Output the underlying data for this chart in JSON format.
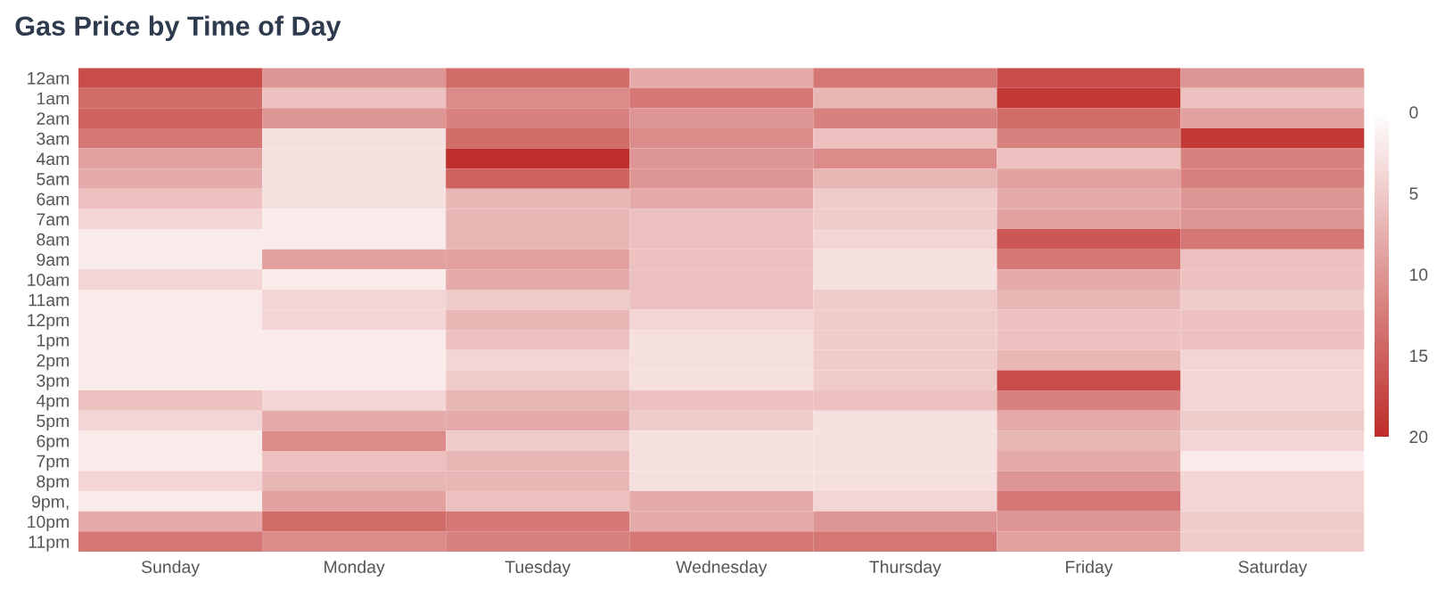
{
  "chart_data": {
    "type": "heatmap",
    "title": "Gas Price by Time of Day",
    "categories": [
      "Sunday",
      "Monday",
      "Tuesday",
      "Wednesday",
      "Thursday",
      "Friday",
      "Saturday"
    ],
    "y_categories": [
      "12am",
      "1am",
      "2am",
      "3am",
      "4am",
      "5am",
      "6am",
      "7am",
      "8am",
      "9am",
      "10am",
      "11am",
      "12pm",
      "1pm",
      "2pm",
      "3pm",
      "4pm",
      "5pm",
      "6pm",
      "7pm",
      "8pm",
      "9pm,",
      "10pm",
      "11pm"
    ],
    "cells": [
      [
        17,
        10,
        14,
        8,
        13,
        17,
        10
      ],
      [
        14,
        6,
        11,
        13,
        7,
        19,
        6
      ],
      [
        15,
        10,
        12,
        10,
        12,
        14,
        9
      ],
      [
        13,
        3,
        14,
        11,
        6,
        12,
        19
      ],
      [
        9,
        3,
        20,
        10,
        11,
        6,
        12
      ],
      [
        8,
        3,
        15,
        10,
        7,
        9,
        12
      ],
      [
        6,
        3,
        7,
        8,
        5,
        8,
        10
      ],
      [
        4,
        2,
        7,
        6,
        5,
        9,
        10
      ],
      [
        2,
        2,
        7,
        6,
        4,
        16,
        13
      ],
      [
        2,
        9,
        9,
        6,
        3,
        13,
        6
      ],
      [
        4,
        2,
        8,
        6,
        3,
        8,
        6
      ],
      [
        2,
        4,
        5,
        6,
        5,
        7,
        5
      ],
      [
        2,
        4,
        7,
        4,
        5,
        6,
        6
      ],
      [
        2,
        2,
        6,
        3,
        5,
        6,
        6
      ],
      [
        2,
        2,
        4,
        3,
        5,
        7,
        4
      ],
      [
        2,
        2,
        5,
        3,
        5,
        17,
        4
      ],
      [
        6,
        4,
        7,
        6,
        6,
        12,
        4
      ],
      [
        4,
        8,
        8,
        5,
        3,
        8,
        5
      ],
      [
        2,
        11,
        5,
        3,
        3,
        7,
        4
      ],
      [
        2,
        6,
        7,
        3,
        3,
        8,
        2
      ],
      [
        4,
        7,
        7,
        3,
        3,
        10,
        4
      ],
      [
        2,
        9,
        6,
        8,
        4,
        13,
        4
      ],
      [
        8,
        14,
        13,
        8,
        10,
        10,
        5
      ],
      [
        13,
        11,
        12,
        13,
        13,
        9,
        5
      ]
    ],
    "clim": [
      0,
      20
    ],
    "cticks": [
      0,
      5,
      10,
      15,
      20
    ],
    "colors": [
      "#ffffff",
      "#be2e2a"
    ]
  }
}
